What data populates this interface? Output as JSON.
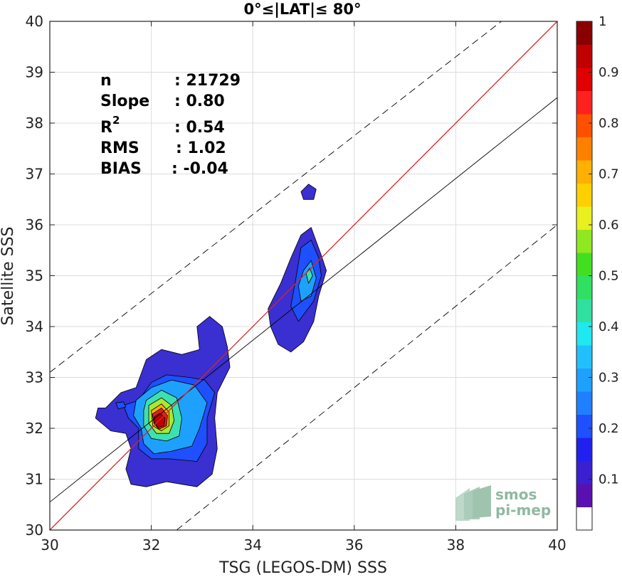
{
  "chart_data": {
    "type": "heatmap",
    "title": "0°≤|LAT|≤ 80°",
    "xlabel": "TSG (LEGOS-DM) SSS",
    "ylabel": "Satellite SSS",
    "xlim": [
      30,
      40
    ],
    "ylim": [
      30,
      40
    ],
    "xticks": [
      "30",
      "32",
      "34",
      "36",
      "38",
      "40"
    ],
    "yticks": [
      "30",
      "31",
      "32",
      "33",
      "34",
      "35",
      "36",
      "37",
      "38",
      "39",
      "40"
    ],
    "grid": true,
    "stats": [
      {
        "label": "n",
        "value": ": 21729"
      },
      {
        "label": "Slope",
        "value": ": 0.80"
      },
      {
        "label": "R",
        "sup": "2",
        "value": ": 0.54"
      },
      {
        "label": "RMS",
        "value": ": 1.02"
      },
      {
        "label": "BIAS",
        "value": ": -0.04"
      }
    ],
    "reference_lines": {
      "identity": {
        "points": [
          [
            30,
            30
          ],
          [
            40,
            40
          ]
        ],
        "color": "#d62728"
      },
      "fit": {
        "slope": 0.8,
        "points": [
          [
            30,
            30.55
          ],
          [
            40,
            38.5
          ]
        ],
        "color": "#000000"
      },
      "bounds_upper": {
        "points": [
          [
            30,
            33.1
          ],
          [
            38.9,
            40
          ]
        ],
        "style": "dashed"
      },
      "bounds_lower": {
        "points": [
          [
            32.5,
            30
          ],
          [
            40,
            36.0
          ]
        ],
        "style": "dashed"
      }
    },
    "density_clusters": [
      {
        "name": "main",
        "levels": [
          {
            "value": 0.1,
            "color": "#3a2fd0",
            "polygon": [
              [
                31.1,
                32.4
              ],
              [
                31.4,
                32.7
              ],
              [
                31.7,
                32.8
              ],
              [
                31.9,
                33.35
              ],
              [
                32.2,
                33.55
              ],
              [
                32.6,
                33.45
              ],
              [
                32.95,
                33.55
              ],
              [
                32.9,
                34.0
              ],
              [
                33.15,
                34.2
              ],
              [
                33.4,
                34.0
              ],
              [
                33.5,
                33.6
              ],
              [
                33.55,
                33.2
              ],
              [
                33.3,
                32.7
              ],
              [
                33.25,
                32.2
              ],
              [
                33.3,
                31.6
              ],
              [
                33.2,
                31.1
              ],
              [
                32.9,
                30.85
              ],
              [
                32.3,
                30.95
              ],
              [
                31.9,
                30.85
              ],
              [
                31.6,
                30.9
              ],
              [
                31.5,
                31.2
              ],
              [
                31.6,
                31.6
              ],
              [
                31.5,
                31.9
              ],
              [
                31.2,
                31.95
              ],
              [
                30.9,
                32.2
              ],
              [
                30.95,
                32.4
              ]
            ]
          },
          {
            "value": 0.2,
            "color": "#1e50ff",
            "polygon": [
              [
                31.45,
                32.45
              ],
              [
                31.75,
                32.55
              ],
              [
                32.0,
                32.9
              ],
              [
                32.3,
                33.05
              ],
              [
                32.75,
                33.0
              ],
              [
                33.05,
                32.95
              ],
              [
                33.25,
                32.7
              ],
              [
                33.1,
                32.2
              ],
              [
                33.1,
                31.7
              ],
              [
                32.9,
                31.35
              ],
              [
                32.35,
                31.4
              ],
              [
                32.0,
                31.4
              ],
              [
                31.75,
                31.6
              ],
              [
                31.75,
                32.0
              ],
              [
                31.55,
                32.2
              ]
            ]
          },
          {
            "value": 0.3,
            "color": "#1ea0ff",
            "polygon": [
              [
                31.7,
                32.55
              ],
              [
                32.0,
                32.8
              ],
              [
                32.4,
                32.95
              ],
              [
                32.85,
                32.85
              ],
              [
                33.1,
                32.5
              ],
              [
                32.95,
                32.0
              ],
              [
                32.8,
                31.65
              ],
              [
                32.4,
                31.55
              ],
              [
                32.05,
                31.5
              ],
              [
                31.85,
                31.7
              ],
              [
                31.8,
                32.0
              ],
              [
                31.65,
                32.25
              ]
            ]
          },
          {
            "value": 0.4,
            "color": "#3ee0b0",
            "polygon": [
              [
                31.9,
                32.55
              ],
              [
                32.2,
                32.75
              ],
              [
                32.5,
                32.6
              ],
              [
                32.6,
                32.2
              ],
              [
                32.55,
                31.85
              ],
              [
                32.3,
                31.75
              ],
              [
                32.0,
                31.8
              ],
              [
                31.85,
                32.05
              ],
              [
                31.85,
                32.35
              ]
            ]
          },
          {
            "value": 0.55,
            "color": "#a8e838",
            "polygon": [
              [
                31.95,
                32.45
              ],
              [
                32.2,
                32.6
              ],
              [
                32.4,
                32.45
              ],
              [
                32.45,
                32.15
              ],
              [
                32.35,
                31.9
              ],
              [
                32.1,
                31.9
              ],
              [
                31.95,
                32.1
              ]
            ]
          },
          {
            "value": 0.7,
            "color": "#ffb000",
            "polygon": [
              [
                32.0,
                32.35
              ],
              [
                32.2,
                32.48
              ],
              [
                32.35,
                32.32
              ],
              [
                32.35,
                32.05
              ],
              [
                32.2,
                31.95
              ],
              [
                32.03,
                32.05
              ]
            ]
          },
          {
            "value": 0.85,
            "color": "#e02020",
            "polygon": [
              [
                32.02,
                32.28
              ],
              [
                32.2,
                32.4
              ],
              [
                32.32,
                32.25
              ],
              [
                32.3,
                32.05
              ],
              [
                32.15,
                31.98
              ],
              [
                32.05,
                32.1
              ]
            ]
          },
          {
            "value": 0.95,
            "color": "#c00000",
            "polygon": [
              [
                32.05,
                32.22
              ],
              [
                32.17,
                32.3
              ],
              [
                32.27,
                32.2
              ],
              [
                32.25,
                32.05
              ],
              [
                32.13,
                32.02
              ],
              [
                32.07,
                32.1
              ]
            ]
          }
        ]
      },
      {
        "name": "upper",
        "levels": [
          {
            "value": 0.1,
            "color": "#3a2fd0",
            "polygon": [
              [
                34.3,
                34.35
              ],
              [
                34.55,
                34.85
              ],
              [
                34.75,
                35.35
              ],
              [
                34.95,
                35.8
              ],
              [
                35.15,
                35.95
              ],
              [
                35.35,
                35.4
              ],
              [
                35.45,
                35.1
              ],
              [
                35.3,
                34.6
              ],
              [
                35.2,
                34.1
              ],
              [
                35.0,
                33.7
              ],
              [
                34.75,
                33.5
              ],
              [
                34.5,
                33.65
              ],
              [
                34.35,
                34.0
              ]
            ]
          },
          {
            "value": 0.2,
            "color": "#1e50ff",
            "polygon": [
              [
                34.95,
                35.55
              ],
              [
                35.15,
                35.7
              ],
              [
                35.3,
                35.35
              ],
              [
                35.35,
                35.0
              ],
              [
                35.2,
                34.5
              ],
              [
                34.9,
                34.1
              ],
              [
                34.75,
                34.4
              ],
              [
                34.85,
                34.95
              ]
            ]
          },
          {
            "value": 0.3,
            "color": "#1ea0ff",
            "polygon": [
              [
                35.0,
                35.1
              ],
              [
                35.15,
                35.3
              ],
              [
                35.25,
                34.95
              ],
              [
                35.15,
                34.6
              ],
              [
                34.95,
                34.5
              ],
              [
                34.9,
                34.8
              ]
            ]
          },
          {
            "value": 0.4,
            "color": "#3ee0b0",
            "polygon": [
              [
                35.05,
                35.05
              ],
              [
                35.12,
                35.15
              ],
              [
                35.18,
                35.0
              ],
              [
                35.1,
                34.85
              ]
            ]
          }
        ]
      },
      {
        "name": "isolated",
        "levels": [
          {
            "value": 0.1,
            "color": "#3a2fd0",
            "polygon": [
              [
                34.95,
                36.65
              ],
              [
                35.1,
                36.8
              ],
              [
                35.25,
                36.7
              ],
              [
                35.2,
                36.5
              ],
              [
                35.0,
                36.5
              ]
            ]
          }
        ]
      },
      {
        "name": "small-left",
        "levels": [
          {
            "value": 0.2,
            "color": "#1e50ff",
            "polygon": [
              [
                31.3,
                32.5
              ],
              [
                31.45,
                32.52
              ],
              [
                31.5,
                32.42
              ],
              [
                31.35,
                32.38
              ]
            ]
          }
        ]
      }
    ],
    "colorbar": {
      "ticks": [
        "0.1",
        "0.2",
        "0.3",
        "0.4",
        "0.5",
        "0.6",
        "0.7",
        "0.8",
        "0.9",
        "1"
      ],
      "tick_values": [
        0.1,
        0.2,
        0.3,
        0.4,
        0.5,
        0.6,
        0.7,
        0.8,
        0.9,
        1.0
      ],
      "range": [
        0,
        1
      ],
      "colors": [
        "#ffffff",
        "#5a10b0",
        "#3a20d0",
        "#2020f0",
        "#1e50ff",
        "#1e80ff",
        "#1ea0ff",
        "#20c0ff",
        "#20e8f0",
        "#30e0a0",
        "#30e060",
        "#40e020",
        "#90e820",
        "#e8f020",
        "#ffd000",
        "#ffb000",
        "#ff8000",
        "#ff5000",
        "#ff2020",
        "#e00000",
        "#c00000",
        "#8a0000"
      ]
    }
  },
  "logo": {
    "line1": "smos",
    "line2": "pi-mep"
  }
}
